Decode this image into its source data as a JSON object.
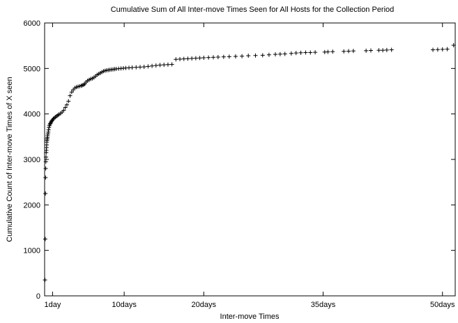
{
  "chart_data": {
    "type": "scatter",
    "title": "Cumulative Sum of All Inter-move Times Seen for All Hosts for the Collection Period",
    "xlabel": "Inter-move Times",
    "ylabel": "Cumulative Count of Inter-move Times of X seen",
    "ylim": [
      0,
      6000
    ],
    "xlim": [
      0,
      51.6
    ],
    "grid": false,
    "marker": "+",
    "x_ticks": [
      {
        "value": 1,
        "label": "1day"
      },
      {
        "value": 10,
        "label": "10days"
      },
      {
        "value": 20,
        "label": "20days"
      },
      {
        "value": 35,
        "label": "35days"
      },
      {
        "value": 50,
        "label": "50days"
      }
    ],
    "y_ticks": [
      0,
      1000,
      2000,
      3000,
      4000,
      5000,
      6000
    ],
    "series": [
      {
        "x": [
          0.05,
          0.08,
          0.1,
          0.12,
          0.14,
          0.16,
          0.18,
          0.2,
          0.22,
          0.24,
          0.26,
          0.28,
          0.3,
          0.32,
          0.35,
          0.38,
          0.42,
          0.46,
          0.5,
          0.55,
          0.6,
          0.66,
          0.72,
          0.78,
          0.85,
          0.92,
          1.0,
          1.1,
          1.2,
          1.35,
          1.5,
          1.65,
          1.8,
          2.0,
          2.2,
          2.4,
          2.6,
          2.8,
          3.0,
          3.2,
          3.4,
          3.6,
          3.8,
          4.0,
          4.2,
          4.4,
          4.6,
          4.75,
          4.9,
          5.05,
          5.2,
          5.4,
          5.6,
          5.8,
          6.0,
          6.2,
          6.4,
          6.6,
          6.8,
          7.0,
          7.2,
          7.4,
          7.6,
          7.8,
          8.0,
          8.2,
          8.4,
          8.6,
          8.8,
          9.0,
          9.3,
          9.6,
          9.9,
          10.2,
          10.6,
          11.0,
          11.5,
          12.0,
          12.5,
          13.0,
          13.5,
          14.0,
          14.5,
          15.0,
          15.5,
          16.0,
          16.5,
          17.0,
          17.5,
          18.0,
          18.5,
          19.0,
          19.5,
          20.0,
          20.6,
          21.2,
          21.8,
          22.5,
          23.2,
          24.0,
          24.8,
          25.6,
          26.5,
          27.4,
          28.2,
          29.0,
          29.6,
          30.2,
          31.0,
          31.6,
          32.2,
          32.8,
          33.4,
          34.0,
          35.2,
          35.6,
          36.2,
          37.6,
          38.2,
          38.8,
          40.4,
          41.0,
          42.0,
          42.5,
          43.0,
          43.6,
          48.8,
          49.4,
          50.0,
          50.6,
          51.4
        ],
        "y": [
          350,
          1250,
          2250,
          2600,
          2800,
          2950,
          3050,
          3150,
          3200,
          3260,
          3320,
          3380,
          3420,
          3450,
          3480,
          3520,
          3560,
          3600,
          3650,
          3700,
          3740,
          3770,
          3790,
          3810,
          3830,
          3850,
          3870,
          3890,
          3910,
          3930,
          3950,
          3970,
          3990,
          4010,
          4040,
          4080,
          4140,
          4200,
          4280,
          4400,
          4480,
          4530,
          4570,
          4590,
          4600,
          4610,
          4620,
          4630,
          4640,
          4660,
          4700,
          4730,
          4750,
          4770,
          4780,
          4800,
          4830,
          4860,
          4880,
          4900,
          4920,
          4940,
          4950,
          4960,
          4965,
          4970,
          4975,
          4980,
          4985,
          4990,
          4995,
          5000,
          5005,
          5010,
          5015,
          5020,
          5025,
          5030,
          5035,
          5045,
          5055,
          5065,
          5075,
          5080,
          5085,
          5090,
          5200,
          5205,
          5210,
          5215,
          5220,
          5225,
          5230,
          5235,
          5240,
          5245,
          5250,
          5255,
          5260,
          5265,
          5270,
          5280,
          5285,
          5290,
          5300,
          5310,
          5315,
          5320,
          5330,
          5340,
          5345,
          5350,
          5350,
          5355,
          5360,
          5365,
          5370,
          5375,
          5380,
          5385,
          5390,
          5395,
          5400,
          5400,
          5405,
          5410,
          5410,
          5415,
          5420,
          5425,
          5510
        ]
      }
    ]
  }
}
